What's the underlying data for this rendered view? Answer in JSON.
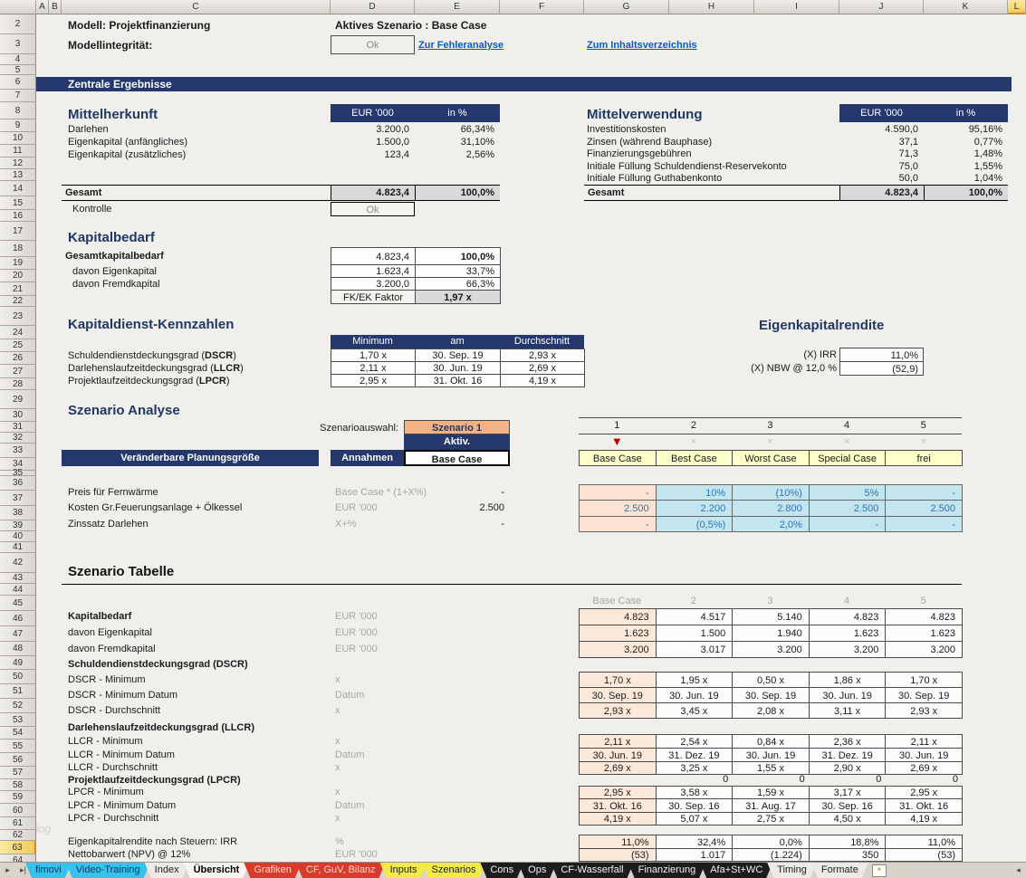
{
  "grid": {
    "columns": [
      "A",
      "B",
      "C",
      "D",
      "E",
      "F",
      "G",
      "H",
      "I",
      "J",
      "K",
      "L"
    ],
    "selected_column": "L",
    "row_start": 2,
    "row_end": 64,
    "selected_row": 63,
    "watermark": "blog"
  },
  "header": {
    "model_label": "Modell: Projektfinanzierung",
    "scenario_label": "Aktives Szenario : Base Case",
    "integrity_label": "Modellintegrität:",
    "integrity_value": "Ok",
    "link_error": "Zur Fehleranalyse",
    "link_toc": "Zum Inhaltsverzeichnis",
    "banner": "Zentrale Ergebnisse"
  },
  "colors": {
    "navy": "#24386D",
    "navy_text": "#1F3864",
    "gray_fill": "#D9D9D9",
    "peach": "#FBE2D3",
    "peach_light": "#FDE9DA",
    "lightblue": "#C3E5F0",
    "yellow_cell": "#FFFFC9",
    "orange_cell": "#F4B183",
    "blue_value": "#2E75B6",
    "red_marker": "#C00000"
  },
  "mittelherkunft": {
    "title": "Mittelherkunft",
    "col1": "EUR '000",
    "col2": "in %",
    "rows": [
      {
        "label": "Darlehen",
        "v1": "3.200,0",
        "v2": "66,34%"
      },
      {
        "label": "Eigenkapital (anfängliches)",
        "v1": "1.500,0",
        "v2": "31,10%"
      },
      {
        "label": "Eigenkapital (zusätzliches)",
        "v1": "123,4",
        "v2": "2,56%"
      }
    ],
    "total_label": "Gesamt",
    "total_v1": "4.823,4",
    "total_v2": "100,0%",
    "kontrolle_label": "Kontrolle",
    "kontrolle_value": "Ok"
  },
  "mittelverwendung": {
    "title": "Mittelverwendung",
    "col1": "EUR '000",
    "col2": "in %",
    "rows": [
      {
        "label": "Investitionskosten",
        "v1": "4.590,0",
        "v2": "95,16%"
      },
      {
        "label": "Zinsen (während Bauphase)",
        "v1": "37,1",
        "v2": "0,77%"
      },
      {
        "label": "Finanzierungsgebühren",
        "v1": "71,3",
        "v2": "1,48%"
      },
      {
        "label": "Initiale Füllung Schuldendienst-Reservekonto",
        "v1": "75,0",
        "v2": "1,55%"
      },
      {
        "label": "Initiale Füllung Guthabenkonto",
        "v1": "50,0",
        "v2": "1,04%"
      }
    ],
    "total_label": "Gesamt",
    "total_v1": "4.823,4",
    "total_v2": "100,0%"
  },
  "kapitalbedarf": {
    "title": "Kapitalbedarf",
    "rows": [
      {
        "label": "Gesamtkapitalbedarf",
        "bold": true,
        "v1": "4.823,4",
        "v2": "100,0%",
        "v2bold": true
      },
      {
        "label": "davon Eigenkapital",
        "bold": false,
        "v1": "1.623,4",
        "v2": "33,7%"
      },
      {
        "label": "davon Fremdkapital",
        "bold": false,
        "v1": "3.200,0",
        "v2": "66,3%"
      }
    ],
    "fkek_label": "FK/EK Faktor",
    "fkek_value": "1,97 x"
  },
  "kennzahlen": {
    "title": "Kapitaldienst-Kennzahlen",
    "headers": [
      "Minimum",
      "am",
      "Durchschnitt"
    ],
    "rows": [
      {
        "name": "Schuldendienstdeckungsgrad",
        "abbr": "DSCR",
        "min": "1,70 x",
        "am": "30. Sep. 19",
        "avg": "2,93 x"
      },
      {
        "name": "Darlehenslaufzeitdeckungsgrad",
        "abbr": "LLCR",
        "min": "2,11 x",
        "am": "30. Jun. 19",
        "avg": "2,69 x"
      },
      {
        "name": "Projektlaufzeitdeckungsgrad",
        "abbr": "LPCR",
        "min": "2,95 x",
        "am": "31. Okt. 16",
        "avg": "4,19 x"
      }
    ]
  },
  "ekrendite": {
    "title": "Eigenkapitalrendite",
    "rows": [
      {
        "label": "(X) IRR",
        "value": "11,0%"
      },
      {
        "label": "(X) NBW @  12,0 %",
        "value": "(52,9)"
      }
    ]
  },
  "szenario_analyse": {
    "title": "Szenario Analyse",
    "auswahl_label": "Szenarioauswahl:",
    "selected_scenario": "Szenario 1",
    "aktiv_label": "Aktiv.",
    "base_label": "Base Case",
    "header_left": "Veränderbare Planungsgröße",
    "header_mid": "Annahmen",
    "numbers": [
      "1",
      "2",
      "3",
      "4",
      "5"
    ],
    "active_index": 0,
    "marker_active": "▼",
    "marker_inactive": "×",
    "scenario_names": [
      "Base Case",
      "Best Case",
      "Worst Case",
      "Special Case",
      "frei"
    ],
    "rows": [
      {
        "label": "Preis für Fernwärme",
        "annahme": "Base Case * (1+X%)",
        "base": "-",
        "values": [
          "-",
          "10%",
          "(10%)",
          "5%",
          "-"
        ]
      },
      {
        "label": "Kosten Gr.Feuerungsanlage + Ölkessel",
        "annahme": "EUR '000",
        "base": "2.500",
        "values": [
          "2.500",
          "2.200",
          "2.800",
          "2.500",
          "2.500"
        ]
      },
      {
        "label": "Zinssatz Darlehen",
        "annahme": "X+%",
        "base": "-",
        "values": [
          "-",
          "(0,5%)",
          "2,0%",
          "-",
          "-"
        ]
      }
    ]
  },
  "szenario_tabelle": {
    "title": "Szenario Tabelle",
    "col_headers": [
      "Base Case",
      "2",
      "3",
      "4",
      "5"
    ],
    "groups": [
      {
        "align": "right",
        "rows": [
          {
            "label": "Kapitalbedarf",
            "bold": true,
            "unit": "EUR '000",
            "values": [
              "4.823",
              "4.517",
              "5.140",
              "4.823",
              "4.823"
            ]
          },
          {
            "label": "davon Eigenkapital",
            "unit": "EUR '000",
            "values": [
              "1.623",
              "1.500",
              "1.940",
              "1.623",
              "1.623"
            ]
          },
          {
            "label": "davon Fremdkapital",
            "unit": "EUR '000",
            "values": [
              "3.200",
              "3.017",
              "3.200",
              "3.200",
              "3.200"
            ]
          }
        ]
      },
      {
        "align": "center",
        "section": "Schuldendienstdeckungsgrad (DSCR)",
        "rows": [
          {
            "label": "DSCR - Minimum",
            "unit": "x",
            "values": [
              "1,70 x",
              "1,95 x",
              "0,50 x",
              "1,86 x",
              "1,70 x"
            ]
          },
          {
            "label": "DSCR - Minimum Datum",
            "unit": "Datum",
            "values": [
              "30. Sep. 19",
              "30. Jun. 19",
              "30. Sep. 19",
              "30. Jun. 19",
              "30. Sep. 19"
            ]
          },
          {
            "label": "DSCR - Durchschnitt",
            "unit": "x",
            "values": [
              "2,93 x",
              "3,45 x",
              "2,08 x",
              "3,11 x",
              "2,93 x"
            ]
          }
        ]
      },
      {
        "align": "center",
        "section": "Darlehenslaufzeitdeckungsgrad (LLCR)",
        "rows": [
          {
            "label": "LLCR - Minimum",
            "unit": "x",
            "values": [
              "2,11 x",
              "2,54 x",
              "0,84 x",
              "2,36 x",
              "2,11 x"
            ]
          },
          {
            "label": "LLCR - Minimum Datum",
            "unit": "Datum",
            "values": [
              "30. Jun. 19",
              "31. Dez. 19",
              "30. Jun. 19",
              "31. Dez. 19",
              "30. Jun. 19"
            ]
          },
          {
            "label": "LLCR - Durchschnitt",
            "unit": "x",
            "values": [
              "2,69 x",
              "3,25 x",
              "1,55 x",
              "2,90 x",
              "2,69 x"
            ]
          }
        ]
      },
      {
        "align": "center",
        "section": "Projektlaufzeitdeckungsgrad (LPCR)",
        "zeros": [
          "0",
          "0",
          "0",
          "0"
        ],
        "rows": [
          {
            "label": "LPCR - Minimum",
            "unit": "x",
            "values": [
              "2,95 x",
              "3,58 x",
              "1,59 x",
              "3,17 x",
              "2,95 x"
            ]
          },
          {
            "label": "LPCR - Minimum Datum",
            "unit": "Datum",
            "values": [
              "31. Okt. 16",
              "30. Sep. 16",
              "31. Aug. 17",
              "30. Sep. 16",
              "31. Okt. 16"
            ]
          },
          {
            "label": "LPCR - Durchschnitt",
            "unit": "x",
            "values": [
              "4,19 x",
              "5,07 x",
              "2,75 x",
              "4,50 x",
              "4,19 x"
            ]
          }
        ]
      },
      {
        "align": "right",
        "rows": [
          {
            "label": "Eigenkapitalrendite nach Steuern: IRR",
            "unit": "%",
            "values": [
              "11,0%",
              "32,4%",
              "0,0%",
              "18,8%",
              "11,0%"
            ]
          },
          {
            "label": "Nettobarwert (NPV) @ 12%",
            "unit": "EUR '000",
            "values": [
              "(53)",
              "1.017",
              "(1.224)",
              "350",
              "(53)"
            ]
          }
        ]
      }
    ]
  },
  "tabbar": {
    "nav_left": [
      "▸",
      "▸|"
    ],
    "nav_right": "◂",
    "tabs": [
      {
        "label": "fimovi",
        "style": "cyan"
      },
      {
        "label": "Video-Training",
        "style": "cyan"
      },
      {
        "label": "Index",
        "style": "plain"
      },
      {
        "label": "Übersicht",
        "style": "active"
      },
      {
        "label": "Grafiken",
        "style": "red"
      },
      {
        "label": "CF, GuV, Bilanz",
        "style": "red"
      },
      {
        "label": "Inputs",
        "style": "yellow"
      },
      {
        "label": "Szenarios",
        "style": "yellow"
      },
      {
        "label": "Cons",
        "style": "dark"
      },
      {
        "label": "Ops",
        "style": "dark"
      },
      {
        "label": "CF-Wasserfall",
        "style": "dark"
      },
      {
        "label": "Finanzierung",
        "style": "dark"
      },
      {
        "label": "Afa+St+WC",
        "style": "dark"
      },
      {
        "label": "Timing",
        "style": "plain"
      },
      {
        "label": "Formate",
        "style": "plain"
      }
    ],
    "insert_sheet_icon": "insert-sheet-icon"
  }
}
